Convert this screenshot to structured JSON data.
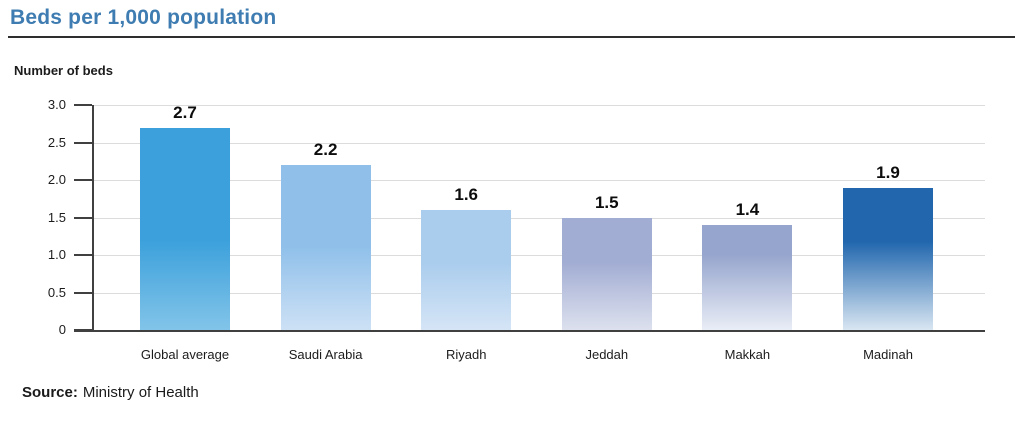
{
  "page": {
    "title": "Beds per 1,000 population",
    "source_label": "Source:",
    "source_text": "Ministry of Health"
  },
  "chart_data": {
    "type": "bar",
    "title": "Beds per 1,000 population",
    "xlabel": "",
    "ylabel": "Number of beds",
    "categories": [
      "Global average",
      "Saudi Arabia",
      "Riyadh",
      "Jeddah",
      "Makkah",
      "Madinah"
    ],
    "values": [
      2.7,
      2.2,
      1.6,
      1.5,
      1.4,
      1.9
    ],
    "ylim": [
      0,
      3.0
    ],
    "ytick_labels": [
      "3.0",
      "2.5",
      "2.0",
      "1.5",
      "1.0",
      "0.5",
      "0"
    ],
    "grid": true,
    "legend": "none",
    "source": "Ministry of Health",
    "bars": [
      {
        "label": "Global average",
        "value": 2.7,
        "display": "2.7",
        "color_top": "#3BA0DB",
        "color_bottom": "#82C4E9",
        "solid_until": 55
      },
      {
        "label": "Saudi Arabia",
        "value": 2.2,
        "display": "2.2",
        "color_top": "#90C0EA",
        "color_bottom": "#CDE1F5",
        "solid_until": 50
      },
      {
        "label": "Riyadh",
        "value": 1.6,
        "display": "1.6",
        "color_top": "#ABCDED",
        "color_bottom": "#D5E5F6",
        "solid_until": 45
      },
      {
        "label": "Jeddah",
        "value": 1.5,
        "display": "1.5",
        "color_top": "#A2ADD3",
        "color_bottom": "#DDE1EE",
        "solid_until": 40
      },
      {
        "label": "Makkah",
        "value": 1.4,
        "display": "1.4",
        "color_top": "#96A5CD",
        "color_bottom": "#E9EDF6",
        "solid_until": 28
      },
      {
        "label": "Madinah",
        "value": 1.9,
        "display": "1.9",
        "color_top": "#2267AE",
        "color_bottom": "#D9E6F2",
        "solid_until": 38
      }
    ]
  },
  "colors": {
    "title": "#3E7CB1",
    "rule": "#2E2E2E",
    "axis": "#404040",
    "gridline": "#DCDCDC",
    "value_label": "#0D0D0D",
    "tick_label": "#1C1C1C"
  }
}
